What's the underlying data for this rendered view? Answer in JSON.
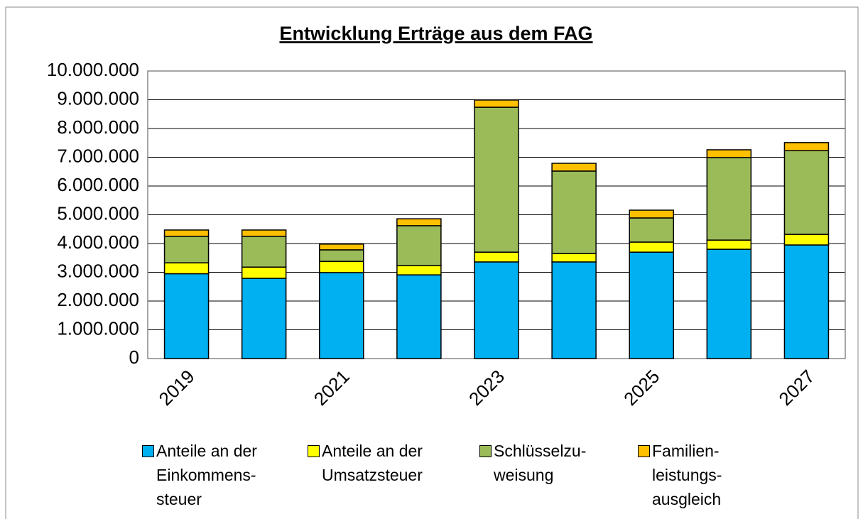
{
  "chart_data": {
    "type": "stacked_bar",
    "title": "Entwicklung Erträge aus dem FAG",
    "categories": [
      "2019",
      null,
      "2021",
      null,
      "2023",
      null,
      "2025",
      null,
      "2027"
    ],
    "series": [
      {
        "name": "Anteile an der\nEinkommens-\nsteuer",
        "color": "#00b0f0",
        "values": [
          2950000,
          2790000,
          2990000,
          2910000,
          3360000,
          3360000,
          3700000,
          3800000,
          3950000
        ]
      },
      {
        "name": "Anteile an der\nUmsatzsteuer",
        "color": "#ffff00",
        "values": [
          380000,
          390000,
          390000,
          320000,
          340000,
          290000,
          350000,
          320000,
          370000
        ]
      },
      {
        "name": "Schlüsselzu-\nweisung",
        "color": "#9bbb59",
        "values": [
          920000,
          1070000,
          400000,
          1390000,
          5040000,
          2870000,
          840000,
          2870000,
          2910000
        ]
      },
      {
        "name": "Familien-\nleistungs-\nausgleich",
        "color": "#ffc000",
        "values": [
          220000,
          220000,
          200000,
          240000,
          250000,
          270000,
          270000,
          270000,
          280000
        ]
      }
    ],
    "ylim": [
      0,
      10000000
    ],
    "yticks": [
      0,
      {
        "value": 1000000,
        "label": "1.000.000"
      },
      {
        "value": 2000000,
        "label": "2.000.000"
      },
      {
        "value": 3000000,
        "label": "3.000.000"
      },
      {
        "value": 4000000,
        "label": "4.000.000"
      },
      {
        "value": 5000000,
        "label": "5.000.000"
      },
      {
        "value": 6000000,
        "label": "6.000.000"
      },
      {
        "value": 7000000,
        "label": "7.000.000"
      },
      {
        "value": 8000000,
        "label": "8.000.000"
      },
      {
        "value": 9000000,
        "label": "9.000.000"
      },
      {
        "value": 10000000,
        "label": "10.000.000"
      }
    ],
    "grid": true
  }
}
